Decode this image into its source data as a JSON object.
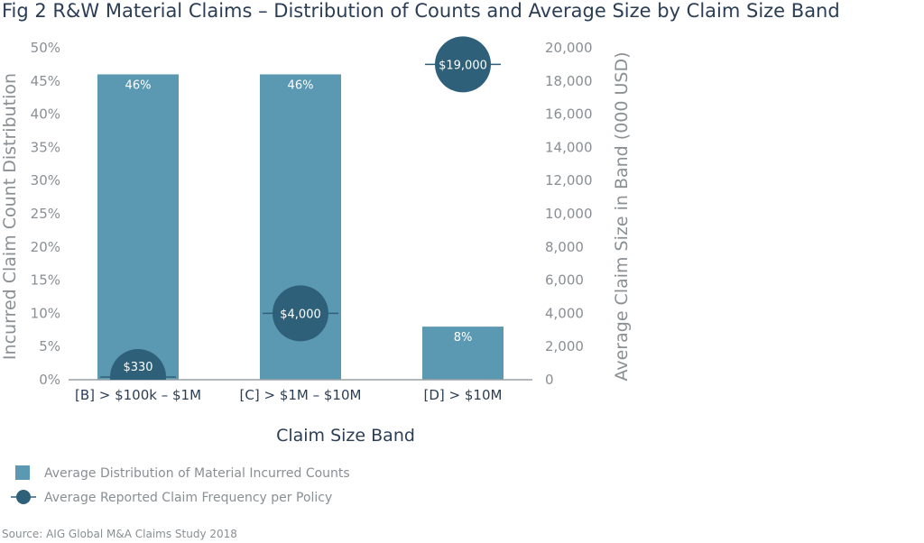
{
  "chart_data": {
    "type": "bar",
    "title": "Fig 2   R&W Material Claims – Distribution of Counts and Average Size by Claim Size Band",
    "xlabel": "Claim Size Band",
    "ylabel": "Incurred Claim Count Distribution",
    "y2label": "Average Claim Size in Band (000 USD)",
    "categories": [
      "[B] > $100k – $1M",
      "[C] > $1M – $10M",
      "[D] > $10M"
    ],
    "ylim": [
      0,
      50
    ],
    "y2lim": [
      0,
      20000
    ],
    "yticks": [
      "0%",
      "5%",
      "10%",
      "15%",
      "20%",
      "25%",
      "30%",
      "35%",
      "40%",
      "45%",
      "50%"
    ],
    "y2ticks": [
      "0",
      "2,000",
      "4,000",
      "6,000",
      "8,000",
      "10,000",
      "12,000",
      "14,000",
      "16,000",
      "18,000",
      "20,000"
    ],
    "series": [
      {
        "name": "Average Distribution of Material Incurred Counts",
        "type": "bar",
        "axis": "left",
        "values": [
          46,
          46,
          8
        ],
        "labels": [
          "46%",
          "46%",
          "8%"
        ],
        "color": "#5b98b1"
      },
      {
        "name": "Average Reported Claim Frequency per Policy",
        "type": "marker",
        "axis": "right",
        "values": [
          330,
          4000,
          19000
        ],
        "labels": [
          "$330",
          "$4,000",
          "$19,000"
        ],
        "color": "#2e6079"
      }
    ],
    "legend": "bottom-left",
    "grid": false
  },
  "source": "Source: AIG Global M&A Claims Study 2018"
}
